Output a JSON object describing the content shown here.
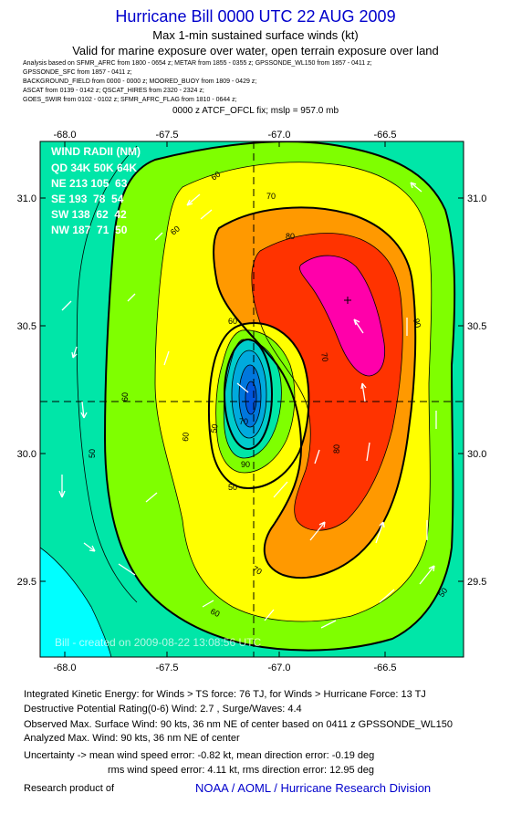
{
  "header": {
    "title": "Hurricane Bill 0000 UTC 22 AUG 2009",
    "subtitle1": "Max 1-min sustained surface winds (kt)",
    "subtitle2": "Valid for marine exposure over water, open terrain exposure over land",
    "analysis_lines": [
      "Analysis based on  SFMR_AFRC from 1800 - 0654 z;   METAR from 1855 - 0355 z;  GPSSONDE_WL150 from 1857 - 0411 z;",
      "GPSSONDE_SFC from 1857 - 0411 z;",
      "BACKGROUND_FIELD from 0000 - 0000 z;  MOORED_BUOY from 1809 - 0429 z;",
      "ASCAT from 0139 - 0142 z;   QSCAT_HIRES from 2320 - 2324 z;",
      "GOES_SWIR from 0102 - 0102 z;   SFMR_AFRC_FLAG from 1810 - 0644 z;"
    ],
    "fix": "0000 z ATCF_OFCL fix; mslp = 957.0 mb"
  },
  "map": {
    "lon_ticks": [
      "-68.0",
      "-67.5",
      "-67.0",
      "-66.5"
    ],
    "lat_ticks": [
      "31.0",
      "30.5",
      "30.0",
      "29.5"
    ],
    "contour_labels": [
      "60",
      "70",
      "60",
      "80",
      "70",
      "90",
      "60",
      "60",
      "50",
      "50",
      "70",
      "80",
      "90",
      "60",
      "50",
      "70",
      "60",
      "50"
    ],
    "wind_radii": {
      "title": "WIND RADII (NM)",
      "header": "QD 34K 50K 64K",
      "rows": [
        "NE 213 105  63",
        "SE 193  78  54",
        "SW 138  62  42",
        "NW 187  71  50"
      ]
    },
    "credit": "Bill - created on 2009-08-22 13:08:56 UTC",
    "colors": {
      "c40": "#00ffff",
      "c50": "#00e6a8",
      "c60": "#7fff00",
      "c70": "#ffff00",
      "c80": "#ff9900",
      "c90": "#ff3300",
      "c100": "#ff00aa",
      "eye": "#0055dd"
    }
  },
  "footer": {
    "ike": "Integrated Kinetic Energy:  for Winds > TS force: 76 TJ,  for Winds > Hurricane Force: 13 TJ",
    "dpr": "Destructive Potential Rating(0-6)   Wind: 2.7 , Surge/Waves: 4.4",
    "obs": "Observed Max. Surface Wind: 90 kts, 36 nm NE of center based on 0411 z GPSSONDE_WL150",
    "analyzed": "Analyzed Max. Wind: 90 kts, 36 nm NE of center",
    "uncert1": "Uncertainty -> mean wind speed error:  -0.82 kt,   mean direction error:  -0.19 deg",
    "uncert2": "rms wind speed error: 4.11 kt,  rms direction error: 12.95 deg",
    "research": "Research product of",
    "noaa": "NOAA / AOML / Hurricane Research Division"
  }
}
